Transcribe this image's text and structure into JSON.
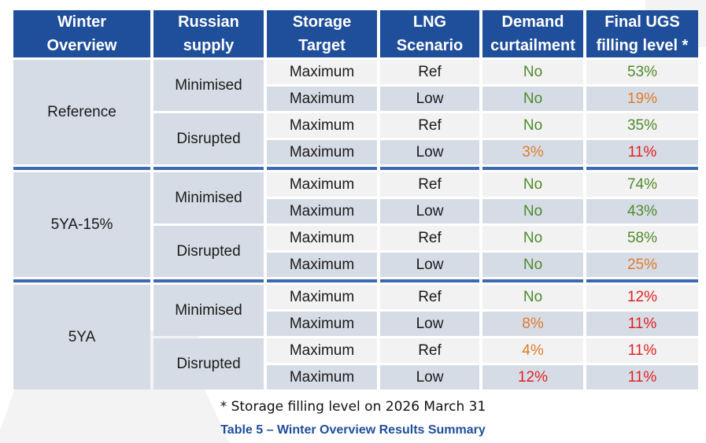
{
  "table": {
    "headers": [
      {
        "line1": "Winter",
        "line2": "Overview"
      },
      {
        "line1": "Russian",
        "line2": "supply"
      },
      {
        "line1": "Storage",
        "line2": "Target"
      },
      {
        "line1": "LNG",
        "line2": "Scenario"
      },
      {
        "line1": "Demand",
        "line2": "curtailment"
      },
      {
        "line1": "Final UGS",
        "line2": "filling level *"
      }
    ],
    "groups": [
      {
        "name": "Reference",
        "supplies": [
          {
            "name": "Minimised",
            "rows": [
              {
                "storage": "Maximum",
                "lng": "Ref",
                "demand": "No",
                "demand_color": "green",
                "final": "53%",
                "final_color": "green"
              },
              {
                "storage": "Maximum",
                "lng": "Low",
                "demand": "No",
                "demand_color": "green",
                "final": "19%",
                "final_color": "orange"
              }
            ]
          },
          {
            "name": "Disrupted",
            "rows": [
              {
                "storage": "Maximum",
                "lng": "Ref",
                "demand": "No",
                "demand_color": "green",
                "final": "35%",
                "final_color": "green"
              },
              {
                "storage": "Maximum",
                "lng": "Low",
                "demand": "3%",
                "demand_color": "orange",
                "final": "11%",
                "final_color": "red"
              }
            ]
          }
        ]
      },
      {
        "name": "5YA-15%",
        "supplies": [
          {
            "name": "Minimised",
            "rows": [
              {
                "storage": "Maximum",
                "lng": "Ref",
                "demand": "No",
                "demand_color": "green",
                "final": "74%",
                "final_color": "green"
              },
              {
                "storage": "Maximum",
                "lng": "Low",
                "demand": "No",
                "demand_color": "green",
                "final": "43%",
                "final_color": "green"
              }
            ]
          },
          {
            "name": "Disrupted",
            "rows": [
              {
                "storage": "Maximum",
                "lng": "Ref",
                "demand": "No",
                "demand_color": "green",
                "final": "58%",
                "final_color": "green"
              },
              {
                "storage": "Maximum",
                "lng": "Low",
                "demand": "No",
                "demand_color": "green",
                "final": "25%",
                "final_color": "orange"
              }
            ]
          }
        ]
      },
      {
        "name": "5YA",
        "supplies": [
          {
            "name": "Minimised",
            "rows": [
              {
                "storage": "Maximum",
                "lng": "Ref",
                "demand": "No",
                "demand_color": "green",
                "final": "12%",
                "final_color": "red"
              },
              {
                "storage": "Maximum",
                "lng": "Low",
                "demand": "8%",
                "demand_color": "orange",
                "final": "11%",
                "final_color": "red"
              }
            ]
          },
          {
            "name": "Disrupted",
            "rows": [
              {
                "storage": "Maximum",
                "lng": "Ref",
                "demand": "4%",
                "demand_color": "orange",
                "final": "11%",
                "final_color": "red"
              },
              {
                "storage": "Maximum",
                "lng": "Low",
                "demand": "12%",
                "demand_color": "red",
                "final": "11%",
                "final_color": "red"
              }
            ]
          }
        ]
      }
    ]
  },
  "footnote": "* Storage filling level on 2026 March 31",
  "caption": "Table 5 – Winter Overview Results Summary",
  "colors": {
    "header_bg": "#1f4e9a",
    "group_bg": "#d6dce6",
    "light_row_bg": "#f2f2f2",
    "separator": "#3c6ab2",
    "green": "#4f8a2a",
    "orange": "#e07b2a",
    "red": "#e02020"
  }
}
